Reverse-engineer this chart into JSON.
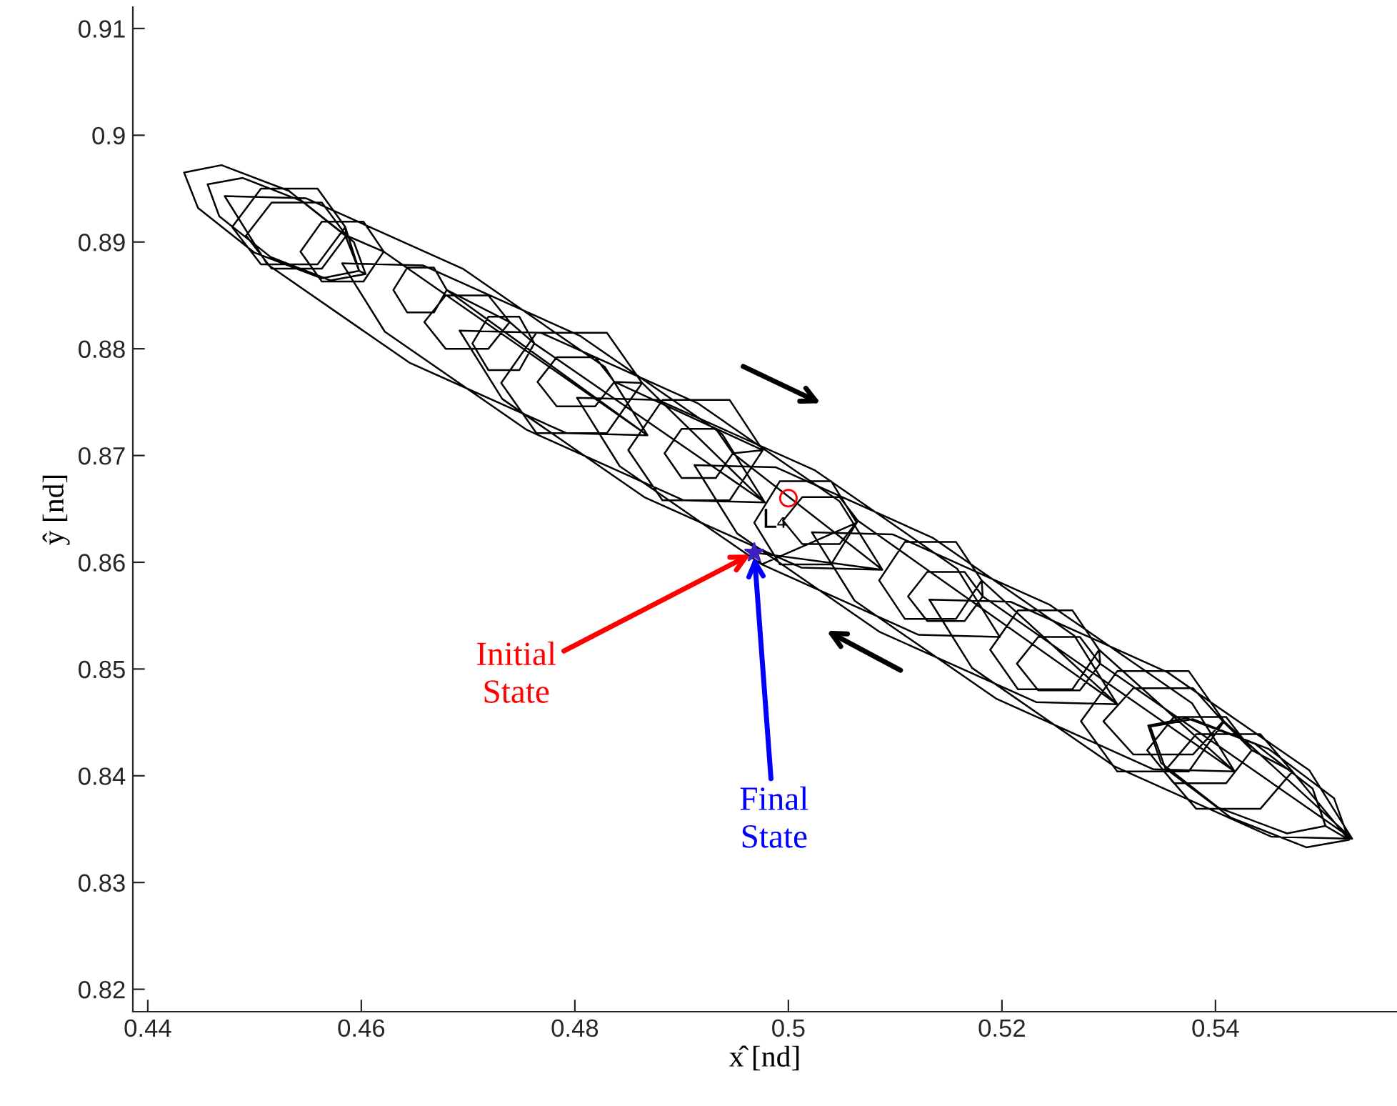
{
  "chart_data": {
    "type": "line",
    "xlabel": "x̂ [nd]",
    "ylabel": "ŷ [nd]",
    "xlim": [
      0.4386,
      0.557
    ],
    "ylim": [
      0.8179,
      0.912
    ],
    "xticks": [
      0.44,
      0.46,
      0.48,
      0.5,
      0.52,
      0.54
    ],
    "yticks": [
      0.82,
      0.83,
      0.84,
      0.85,
      0.86,
      0.87,
      0.88,
      0.89,
      0.9,
      0.91
    ],
    "grid": false,
    "annotations": [
      {
        "text": "Initial\nState",
        "x": 0.4968,
        "y": 0.8609
      },
      {
        "text": "Final\nState",
        "x": 0.4968,
        "y": 0.8609
      }
    ],
    "series": [
      {
        "color": "#000000",
        "x": [
          0.4968,
          0.4975,
          0.5122,
          0.5198,
          0.5158,
          0.5025,
          0.4878,
          0.4802,
          0.4842,
          0.4975,
          0.5064,
          0.504,
          0.4992,
          0.4968,
          0.4992,
          0.504,
          0.5064,
          0.5065,
          0.5048,
          0.5013,
          0.4995,
          0.5013,
          0.5048,
          0.5065,
          0.5308,
          0.5268,
          0.5135,
          0.4988,
          0.4912,
          0.4952,
          0.5085,
          0.5232,
          0.5308,
          0.5181,
          0.5157,
          0.5109,
          0.5085,
          0.5109,
          0.5157,
          0.5181,
          0.5182,
          0.5165,
          0.513,
          0.5112,
          0.513,
          0.5165,
          0.5182,
          0.5418,
          0.5378,
          0.5245,
          0.5098,
          0.5022,
          0.5062,
          0.5195,
          0.5342,
          0.5418,
          0.5291,
          0.5266,
          0.5215,
          0.5189,
          0.5215,
          0.5266,
          0.5291,
          0.5292,
          0.5273,
          0.5234,
          0.5214,
          0.5234,
          0.5273,
          0.5292,
          0.5528,
          0.5488,
          0.5355,
          0.5208,
          0.5132,
          0.5172,
          0.5305,
          0.5452,
          0.5528,
          0.5408,
          0.5375,
          0.5308,
          0.5274,
          0.5308,
          0.5375,
          0.5408,
          0.5407,
          0.5379,
          0.5323,
          0.5295,
          0.5323,
          0.5379,
          0.5407,
          0.5434,
          0.541,
          0.5361,
          0.5336,
          0.5361,
          0.541,
          0.5434,
          0.5472,
          0.5442,
          0.5382,
          0.5352,
          0.5382,
          0.5442,
          0.5472,
          0.5525,
          0.5511,
          0.545,
          0.5379,
          0.5339,
          0.5353,
          0.5414,
          0.5485,
          0.5525,
          0.5503,
          0.5491,
          0.5437,
          0.5373,
          0.5337,
          0.5349,
          0.5403,
          0.5467,
          0.5503
        ],
        "values": [
          0.8609,
          0.8598,
          0.8532,
          0.853,
          0.8594,
          0.8686,
          0.8752,
          0.8754,
          0.869,
          0.8598,
          0.8637,
          0.8676,
          0.8676,
          0.8637,
          0.8598,
          0.8598,
          0.8637,
          0.8639,
          0.8661,
          0.8661,
          0.8639,
          0.8617,
          0.8617,
          0.8639,
          0.8467,
          0.8531,
          0.8623,
          0.8689,
          0.8691,
          0.8627,
          0.8535,
          0.8469,
          0.8467,
          0.8583,
          0.8619,
          0.8619,
          0.8583,
          0.8547,
          0.8547,
          0.8583,
          0.8568,
          0.8591,
          0.8591,
          0.8568,
          0.8545,
          0.8545,
          0.8568,
          0.8404,
          0.8468,
          0.856,
          0.8626,
          0.8628,
          0.8564,
          0.8472,
          0.8406,
          0.8404,
          0.8518,
          0.8555,
          0.8555,
          0.8518,
          0.8481,
          0.8481,
          0.8518,
          0.8505,
          0.853,
          0.853,
          0.8505,
          0.848,
          0.848,
          0.8505,
          0.8341,
          0.8405,
          0.8497,
          0.8563,
          0.8565,
          0.8501,
          0.8409,
          0.8343,
          0.8341,
          0.8451,
          0.8498,
          0.8498,
          0.8451,
          0.8404,
          0.8404,
          0.8451,
          0.8451,
          0.8482,
          0.8482,
          0.8451,
          0.842,
          0.842,
          0.8451,
          0.8424,
          0.8455,
          0.8455,
          0.8424,
          0.8393,
          0.8393,
          0.8424,
          0.8404,
          0.8439,
          0.8439,
          0.8404,
          0.8369,
          0.8369,
          0.8404,
          0.834,
          0.8379,
          0.8425,
          0.8453,
          0.8446,
          0.8407,
          0.8361,
          0.8333,
          0.834,
          0.8353,
          0.8388,
          0.843,
          0.8454,
          0.8447,
          0.8412,
          0.837,
          0.8346,
          0.8353
        ]
      },
      {
        "color": "#000000",
        "x": [
          0.4968,
          0.5088,
          0.5048,
          0.4915,
          0.4768,
          0.4692,
          0.4732,
          0.4865,
          0.5012,
          0.5088,
          0.4948,
          0.4932,
          0.49,
          0.4884,
          0.49,
          0.4932,
          0.4948,
          0.4976,
          0.4945,
          0.4882,
          0.485,
          0.4882,
          0.4945,
          0.4976,
          0.4837,
          0.4819,
          0.4783,
          0.4765,
          0.4783,
          0.4819,
          0.4837,
          0.4863,
          0.483,
          0.4764,
          0.4731,
          0.4764,
          0.483,
          0.4863,
          0.4978,
          0.4938,
          0.4805,
          0.4658,
          0.4582,
          0.4622,
          0.4755,
          0.4902,
          0.4978,
          0.4762,
          0.4748,
          0.4719,
          0.4704,
          0.4719,
          0.4748,
          0.4762,
          0.4739,
          0.4719,
          0.4679,
          0.4659,
          0.4679,
          0.4719,
          0.4739,
          0.468,
          0.4668,
          0.4643,
          0.463,
          0.4643,
          0.4668,
          0.468,
          0.4868,
          0.4828,
          0.4695,
          0.4548,
          0.4472,
          0.4512,
          0.4645,
          0.4792,
          0.4868,
          0.4621,
          0.4602,
          0.4563,
          0.4543,
          0.4563,
          0.4602,
          0.4621,
          0.4586,
          0.4563,
          0.4516,
          0.4492,
          0.4516,
          0.4563,
          0.4586,
          0.4585,
          0.4559,
          0.4506,
          0.4479,
          0.4506,
          0.4559,
          0.4585,
          0.4598,
          0.4585,
          0.4532,
          0.4469,
          0.4434,
          0.4447,
          0.45,
          0.4563,
          0.4598,
          0.4604,
          0.4593,
          0.4545,
          0.4489,
          0.4456,
          0.4467,
          0.4515,
          0.4571,
          0.4604
        ],
        "values": [
          0.8609,
          0.8593,
          0.8657,
          0.8749,
          0.8815,
          0.8817,
          0.8753,
          0.8661,
          0.8595,
          0.8593,
          0.8702,
          0.8725,
          0.8725,
          0.8702,
          0.8679,
          0.8679,
          0.8702,
          0.8705,
          0.8752,
          0.8752,
          0.8705,
          0.8658,
          0.8658,
          0.8705,
          0.8769,
          0.8792,
          0.8792,
          0.8769,
          0.8746,
          0.8746,
          0.8769,
          0.8768,
          0.8815,
          0.8815,
          0.8768,
          0.8721,
          0.8721,
          0.8768,
          0.8656,
          0.872,
          0.8812,
          0.8878,
          0.888,
          0.8816,
          0.8724,
          0.8658,
          0.8656,
          0.8805,
          0.883,
          0.883,
          0.8805,
          0.878,
          0.878,
          0.8805,
          0.8825,
          0.885,
          0.885,
          0.8825,
          0.88,
          0.88,
          0.8825,
          0.8855,
          0.8876,
          0.8876,
          0.8855,
          0.8834,
          0.8834,
          0.8855,
          0.8719,
          0.8783,
          0.8875,
          0.8941,
          0.8943,
          0.8879,
          0.8787,
          0.8721,
          0.8719,
          0.8891,
          0.8919,
          0.8919,
          0.8891,
          0.8863,
          0.8863,
          0.8891,
          0.8906,
          0.8937,
          0.8937,
          0.8906,
          0.8875,
          0.8875,
          0.8906,
          0.8914,
          0.895,
          0.895,
          0.8914,
          0.8879,
          0.8879,
          0.8914,
          0.8873,
          0.8906,
          0.8948,
          0.8972,
          0.8965,
          0.8932,
          0.889,
          0.8866,
          0.8873,
          0.887,
          0.89,
          0.8938,
          0.896,
          0.8954,
          0.8924,
          0.8886,
          0.8864,
          0.887
        ]
      },
      {
        "type": "scatter",
        "name": "L₄",
        "color": "#ff0000",
        "marker": "circle",
        "x": [
          0.5
        ],
        "values": [
          0.866
        ]
      },
      {
        "type": "scatter",
        "color": "#4020c0",
        "marker": "star",
        "x": [
          0.4968
        ],
        "values": [
          0.8609
        ]
      }
    ]
  }
}
